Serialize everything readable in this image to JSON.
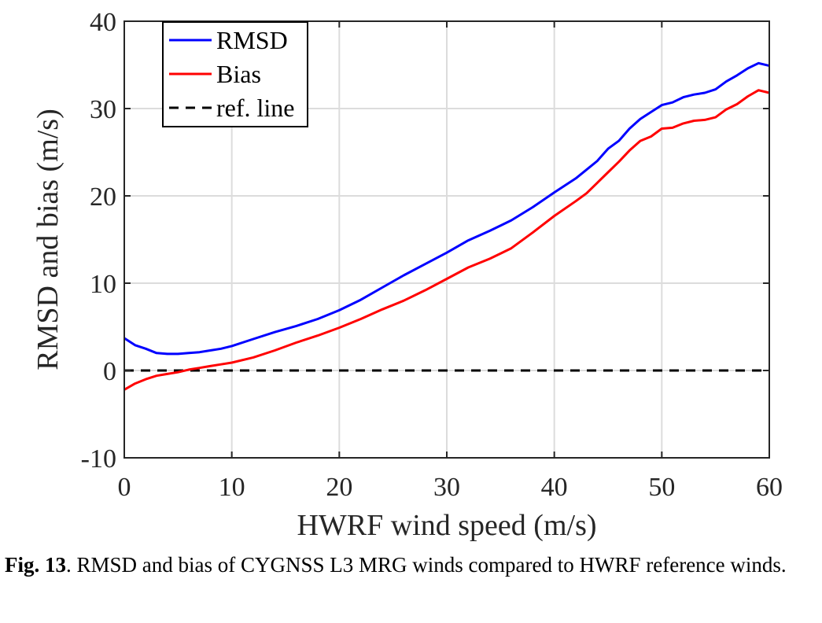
{
  "chart_data": {
    "type": "line",
    "xlabel": "HWRF wind speed (m/s)",
    "ylabel": "RMSD and bias (m/s)",
    "xlim": [
      0,
      60
    ],
    "ylim": [
      -10,
      40
    ],
    "xticks": [
      0,
      10,
      20,
      30,
      40,
      50,
      60
    ],
    "yticks": [
      -10,
      0,
      10,
      20,
      30,
      40
    ],
    "xtick_labels": [
      "0",
      "10",
      "20",
      "30",
      "40",
      "50",
      "60"
    ],
    "ytick_labels": [
      "-10",
      "0",
      "10",
      "20",
      "30",
      "40"
    ],
    "grid": true,
    "legend_position": "top-left",
    "series": [
      {
        "name": "RMSD",
        "color": "#0000ff",
        "style": "solid",
        "x": [
          0,
          1,
          2,
          3,
          4,
          5,
          6,
          7,
          8,
          9,
          10,
          12,
          14,
          16,
          18,
          20,
          22,
          24,
          26,
          28,
          30,
          32,
          34,
          36,
          38,
          40,
          42,
          43,
          44,
          45,
          46,
          47,
          48,
          49,
          50,
          51,
          52,
          53,
          54,
          55,
          56,
          57,
          58,
          59,
          60
        ],
        "values": [
          3.7,
          2.9,
          2.5,
          2.0,
          1.9,
          1.9,
          2.0,
          2.1,
          2.3,
          2.5,
          2.8,
          3.6,
          4.4,
          5.1,
          5.9,
          6.9,
          8.1,
          9.5,
          10.9,
          12.2,
          13.5,
          14.9,
          16.0,
          17.2,
          18.7,
          20.4,
          22.0,
          23.0,
          24.0,
          25.4,
          26.3,
          27.7,
          28.8,
          29.6,
          30.4,
          30.7,
          31.3,
          31.6,
          31.8,
          32.2,
          33.1,
          33.8,
          34.6,
          35.2,
          34.9
        ]
      },
      {
        "name": "Bias",
        "color": "#ff0000",
        "style": "solid",
        "x": [
          0,
          1,
          2,
          3,
          4,
          5,
          6,
          7,
          8,
          9,
          10,
          12,
          14,
          16,
          18,
          20,
          22,
          24,
          26,
          28,
          30,
          32,
          34,
          36,
          38,
          40,
          42,
          43,
          44,
          45,
          46,
          47,
          48,
          49,
          50,
          51,
          52,
          53,
          54,
          55,
          56,
          57,
          58,
          59,
          60
        ],
        "values": [
          -2.2,
          -1.5,
          -1.0,
          -0.6,
          -0.4,
          -0.2,
          0.1,
          0.3,
          0.5,
          0.7,
          0.9,
          1.5,
          2.3,
          3.2,
          4.0,
          4.9,
          5.9,
          7.0,
          8.0,
          9.2,
          10.5,
          11.8,
          12.8,
          14.0,
          15.8,
          17.7,
          19.4,
          20.3,
          21.5,
          22.7,
          23.9,
          25.2,
          26.3,
          26.8,
          27.7,
          27.8,
          28.3,
          28.6,
          28.7,
          29.0,
          29.9,
          30.5,
          31.4,
          32.1,
          31.8
        ]
      },
      {
        "name": "ref. line",
        "color": "#000000",
        "style": "dashed",
        "x": [
          0,
          60
        ],
        "values": [
          0,
          0
        ]
      }
    ]
  },
  "caption": {
    "label": "Fig. 13",
    "text": ". RMSD and bias of CYGNSS L3 MRG winds compared to HWRF reference winds."
  }
}
